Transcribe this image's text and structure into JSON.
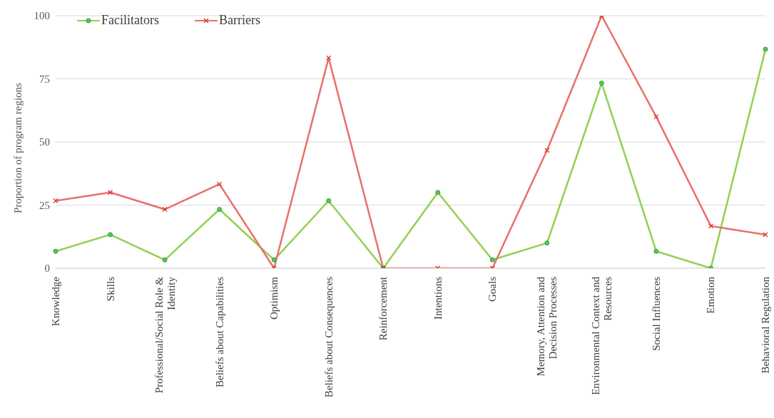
{
  "chart_data": {
    "type": "line",
    "ylabel": "Proportion of program regions",
    "categories": [
      "Knowledge",
      "Skills",
      "Professional/Social Role & Identity",
      "Beliefs about Capabilities",
      "Optimism",
      "Beliefs about Consequences",
      "Reinforcement",
      "Intentions",
      "Goals",
      "Memory, Attention and Decision Processes",
      "Environmental Context and Resources",
      "Social Influences",
      "Emotion",
      "Behavioral Regulation"
    ],
    "series": [
      {
        "name": "Facilitators",
        "color": "#92d050",
        "marker": "circle",
        "values": [
          6.7,
          13.3,
          3.3,
          23.3,
          3.3,
          26.7,
          0,
          30,
          3.3,
          10,
          73.3,
          6.7,
          0,
          86.7
        ]
      },
      {
        "name": "Barriers",
        "color": "#e8706a",
        "marker": "cross",
        "values": [
          26.7,
          30,
          23.3,
          33.3,
          0,
          83.3,
          0,
          0,
          0,
          46.7,
          100,
          60,
          16.7,
          13.3
        ]
      }
    ],
    "ylim": [
      0,
      100
    ],
    "yticks": [
      0,
      25,
      50,
      75,
      100
    ],
    "grid": "y",
    "legend": "top left",
    "line_style": "solid"
  }
}
